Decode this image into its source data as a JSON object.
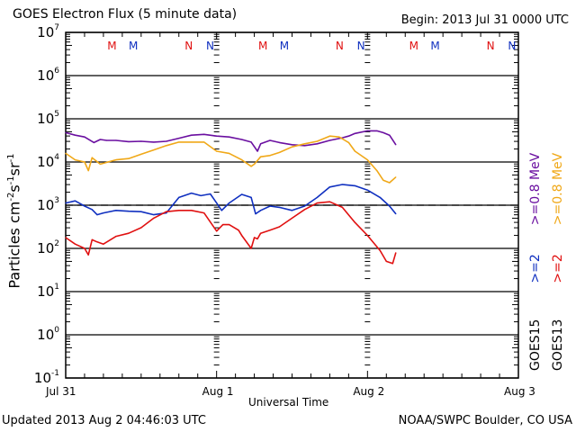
{
  "header": {
    "title": "GOES Electron Flux (5 minute data)",
    "begin": "Begin: 2013 Jul 31 0000 UTC"
  },
  "footer": {
    "updated": "Updated 2013 Aug  2 04:46:03 UTC",
    "credit": "NOAA/SWPC Boulder, CO USA"
  },
  "legend": {
    "col1": [
      {
        "text": "GOES15",
        "color": "#000000"
      },
      {
        "text": ">=2",
        "color": "#1030c0"
      },
      {
        "text": ">=0.8  MeV",
        "color": "#6a0fa0"
      }
    ],
    "col2": [
      {
        "text": "GOES13",
        "color": "#000000"
      },
      {
        "text": ">=2",
        "color": "#e01010"
      },
      {
        "text": ">=0.8  MeV",
        "color": "#f0a818"
      }
    ]
  },
  "markers": [
    {
      "label": "M",
      "color": "#e01010",
      "hour": 7.2
    },
    {
      "label": "M",
      "color": "#1030c0",
      "hour": 10.6
    },
    {
      "label": "N",
      "color": "#e01010",
      "hour": 19.5
    },
    {
      "label": "N",
      "color": "#1030c0",
      "hour": 22.9
    },
    {
      "label": "M",
      "color": "#e01010",
      "hour": 31.2
    },
    {
      "label": "M",
      "color": "#1030c0",
      "hour": 34.6
    },
    {
      "label": "N",
      "color": "#e01010",
      "hour": 43.5
    },
    {
      "label": "N",
      "color": "#1030c0",
      "hour": 46.9
    },
    {
      "label": "M",
      "color": "#e01010",
      "hour": 55.2
    },
    {
      "label": "M",
      "color": "#1030c0",
      "hour": 58.6
    },
    {
      "label": "N",
      "color": "#e01010",
      "hour": 67.5
    },
    {
      "label": "N",
      "color": "#1030c0",
      "hour": 70.9
    }
  ],
  "chart_data": {
    "type": "line",
    "title": "GOES Electron Flux (5 minute data)",
    "xlabel": "Universal Time",
    "ylabel": "Particles cm-2 s-1 sr-1",
    "ylabel_base": "Particles cm",
    "ylabel_parts": [
      "-2",
      "s",
      "-1",
      "sr",
      "-1"
    ],
    "yscale": "log",
    "ylim_exp": [
      -1,
      7
    ],
    "xlim_hours": [
      0,
      72
    ],
    "x_unit": "hours since 2013 Jul 31 00:00 UTC",
    "x_ticks": [
      {
        "hour": 0,
        "label": "Jul 31"
      },
      {
        "hour": 24,
        "label": "Aug 1"
      },
      {
        "hour": 48,
        "label": "Aug 2"
      },
      {
        "hour": 72,
        "label": "Aug 3"
      }
    ],
    "y_ticks": [
      {
        "exp": 7,
        "base": "10",
        "sup": "7"
      },
      {
        "exp": 6,
        "base": "10",
        "sup": "6"
      },
      {
        "exp": 5,
        "base": "10",
        "sup": "5"
      },
      {
        "exp": 4,
        "base": "10",
        "sup": "4"
      },
      {
        "exp": 3,
        "base": "10",
        "sup": "3"
      },
      {
        "exp": 2,
        "base": "10",
        "sup": "2"
      },
      {
        "exp": 1,
        "base": "10",
        "sup": "1"
      },
      {
        "exp": 0,
        "base": "10",
        "sup": "0"
      },
      {
        "exp": -1,
        "base": "10",
        "sup": "-1"
      }
    ],
    "threshold": {
      "value": 1000,
      "style": "dashed"
    },
    "series": [
      {
        "name": "GOES15 >=0.8 MeV",
        "color": "#6a0fa0",
        "x": [
          0,
          1.5,
          3,
          4.5,
          5.5,
          6.5,
          8,
          10,
          12,
          14,
          16,
          18,
          20,
          22,
          24,
          26,
          28,
          29.5,
          30.5,
          31,
          32.5,
          34,
          36,
          38,
          40,
          42,
          44,
          45,
          46,
          48,
          49.5,
          50.5,
          51.5,
          52.5
        ],
        "log_values": [
          4.68,
          4.62,
          4.58,
          4.45,
          4.52,
          4.5,
          4.5,
          4.47,
          4.48,
          4.46,
          4.48,
          4.55,
          4.62,
          4.64,
          4.6,
          4.58,
          4.52,
          4.46,
          4.25,
          4.42,
          4.5,
          4.45,
          4.4,
          4.38,
          4.42,
          4.5,
          4.56,
          4.6,
          4.66,
          4.72,
          4.72,
          4.68,
          4.62,
          4.4
        ]
      },
      {
        "name": "GOES13 >=0.8 MeV",
        "color": "#f0a818",
        "x": [
          0,
          1.5,
          3,
          3.6,
          4.2,
          5.5,
          8,
          10,
          12,
          14,
          16,
          18,
          20,
          22,
          24,
          26,
          28,
          29.5,
          30,
          31,
          32.5,
          34,
          36,
          38,
          40,
          42,
          43.5,
          45,
          46,
          48,
          49.5,
          50.5,
          51.5,
          52.5
        ],
        "log_values": [
          4.2,
          4.05,
          4.0,
          3.8,
          4.1,
          3.95,
          4.05,
          4.08,
          4.18,
          4.28,
          4.38,
          4.46,
          4.46,
          4.46,
          4.25,
          4.2,
          4.05,
          3.9,
          3.95,
          4.12,
          4.15,
          4.22,
          4.35,
          4.42,
          4.48,
          4.6,
          4.58,
          4.45,
          4.25,
          4.05,
          3.8,
          3.58,
          3.52,
          3.65
        ]
      },
      {
        "name": "GOES15 >=2 MeV",
        "color": "#1030c0",
        "x": [
          0,
          1.5,
          3,
          4.2,
          5,
          6,
          8,
          10,
          12,
          14,
          16,
          18,
          20,
          21.5,
          23,
          24,
          24.8,
          26,
          28,
          29.5,
          30.2,
          31,
          32.5,
          34,
          36,
          38,
          40,
          42,
          44,
          46,
          48,
          50,
          51.5,
          52.5
        ],
        "log_values": [
          3.05,
          3.1,
          2.98,
          2.9,
          2.78,
          2.82,
          2.88,
          2.86,
          2.85,
          2.78,
          2.82,
          3.18,
          3.28,
          3.22,
          3.26,
          3.05,
          2.88,
          3.05,
          3.25,
          3.18,
          2.8,
          2.88,
          2.98,
          2.95,
          2.88,
          2.98,
          3.18,
          3.42,
          3.48,
          3.45,
          3.35,
          3.18,
          2.98,
          2.8
        ]
      },
      {
        "name": "GOES13 >=2 MeV",
        "color": "#e01010",
        "x": [
          0,
          1.5,
          3,
          3.6,
          4.2,
          5,
          6,
          8,
          10,
          12,
          14,
          16,
          18,
          20,
          22,
          24,
          25,
          26,
          27.5,
          28,
          29.5,
          30,
          30.5,
          31,
          32.5,
          34,
          36,
          38,
          40,
          42,
          44,
          46,
          48,
          50,
          51,
          52,
          52.5
        ],
        "log_values": [
          2.25,
          2.1,
          2.0,
          1.85,
          2.2,
          2.15,
          2.1,
          2.28,
          2.35,
          2.48,
          2.7,
          2.85,
          2.88,
          2.88,
          2.82,
          2.4,
          2.55,
          2.55,
          2.42,
          2.3,
          2.0,
          2.25,
          2.22,
          2.35,
          2.42,
          2.5,
          2.7,
          2.9,
          3.05,
          3.08,
          2.95,
          2.6,
          2.3,
          1.95,
          1.7,
          1.65,
          1.9
        ]
      }
    ]
  }
}
